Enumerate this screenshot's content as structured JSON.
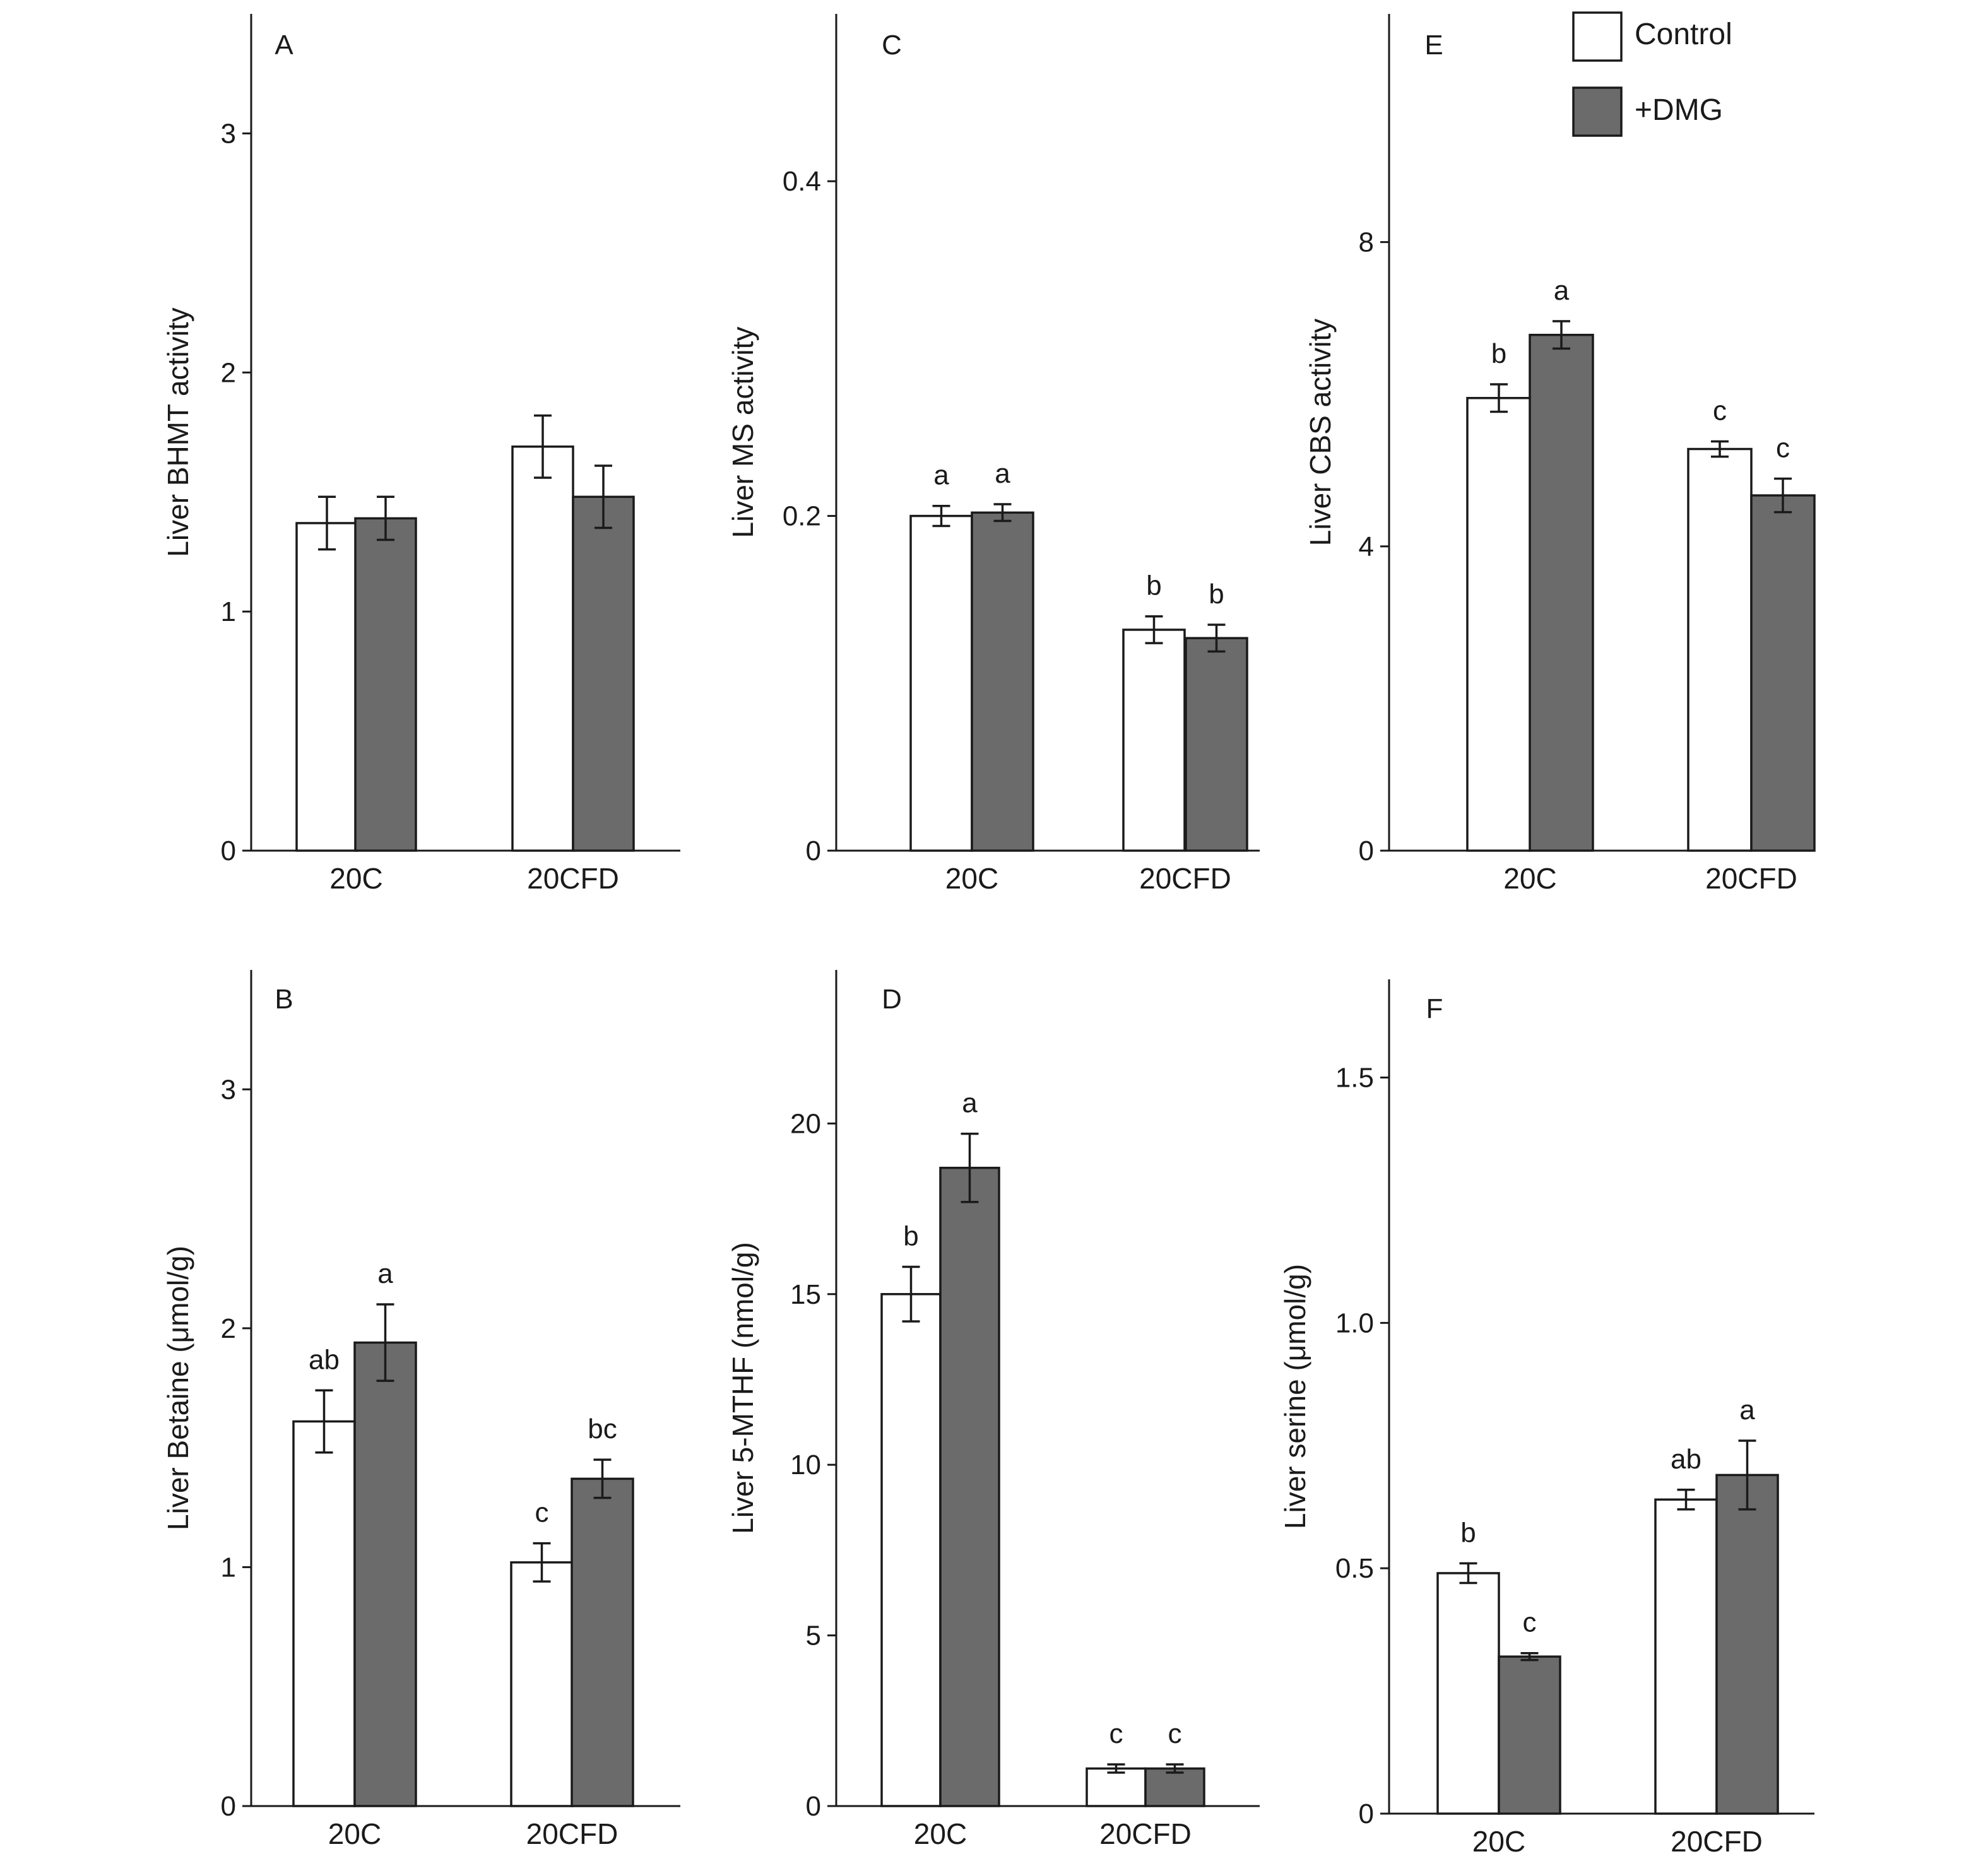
{
  "colors": {
    "control": "#ffffff",
    "dmg": "#6b6b6b",
    "axis": "#1a1a1a"
  },
  "legend": [
    {
      "label": "Control",
      "color": "#ffffff"
    },
    {
      "label": "+DMG",
      "color": "#6b6b6b"
    }
  ],
  "chart_data": [
    {
      "panel": "A",
      "type": "bar",
      "ylabel": "Liver BHMT activity",
      "categories": [
        "20C",
        "20CFD"
      ],
      "ylim": [
        0,
        3.5
      ],
      "yticks": [
        0,
        1,
        2,
        3
      ],
      "series": [
        {
          "name": "Control",
          "values": [
            1.37,
            1.69
          ],
          "errors": [
            0.11,
            0.13
          ],
          "sig": [
            "",
            ""
          ]
        },
        {
          "name": "+DMG",
          "values": [
            1.39,
            1.48
          ],
          "errors": [
            0.09,
            0.13
          ],
          "sig": [
            "",
            ""
          ]
        }
      ]
    },
    {
      "panel": "C",
      "type": "bar",
      "ylabel": "Liver MS activity",
      "categories": [
        "20C",
        "20CFD"
      ],
      "ylim": [
        0,
        0.5
      ],
      "yticks": [
        0,
        0.2,
        0.4
      ],
      "series": [
        {
          "name": "Control",
          "values": [
            0.2,
            0.132
          ],
          "errors": [
            0.006,
            0.008
          ],
          "sig": [
            "a",
            "b"
          ]
        },
        {
          "name": "+DMG",
          "values": [
            0.202,
            0.127
          ],
          "errors": [
            0.005,
            0.008
          ],
          "sig": [
            "a",
            "b"
          ]
        }
      ]
    },
    {
      "panel": "E",
      "type": "bar",
      "ylabel": "Liver CBS activity",
      "categories": [
        "20C",
        "20CFD"
      ],
      "ylim": [
        0,
        11
      ],
      "yticks": [
        0,
        4,
        8
      ],
      "series": [
        {
          "name": "Control",
          "values": [
            5.95,
            5.28
          ],
          "errors": [
            0.18,
            0.1
          ],
          "sig": [
            "b",
            "c"
          ]
        },
        {
          "name": "+DMG",
          "values": [
            6.78,
            4.67
          ],
          "errors": [
            0.18,
            0.22
          ],
          "sig": [
            "a",
            "c"
          ]
        }
      ]
    },
    {
      "panel": "B",
      "type": "bar",
      "ylabel": "Liver Betaine (μmol/g)",
      "categories": [
        "20C",
        "20CFD"
      ],
      "ylim": [
        0,
        3.5
      ],
      "yticks": [
        0,
        1,
        2,
        3
      ],
      "series": [
        {
          "name": "Control",
          "values": [
            1.61,
            1.02
          ],
          "errors": [
            0.13,
            0.08
          ],
          "sig": [
            "ab",
            "c"
          ]
        },
        {
          "name": "+DMG",
          "values": [
            1.94,
            1.37
          ],
          "errors": [
            0.16,
            0.08
          ],
          "sig": [
            "a",
            "bc"
          ]
        }
      ]
    },
    {
      "panel": "D",
      "type": "bar",
      "ylabel": "Liver 5-MTHF (nmol/g)",
      "categories": [
        "20C",
        "20CFD"
      ],
      "ylim": [
        0,
        24.5
      ],
      "yticks": [
        0,
        5,
        10,
        15,
        20
      ],
      "series": [
        {
          "name": "Control",
          "values": [
            15.0,
            1.1
          ],
          "errors": [
            0.8,
            0.12
          ],
          "sig": [
            "b",
            "c"
          ]
        },
        {
          "name": "+DMG",
          "values": [
            18.7,
            1.1
          ],
          "errors": [
            1.0,
            0.12
          ],
          "sig": [
            "a",
            "c"
          ]
        }
      ]
    },
    {
      "panel": "F",
      "type": "bar",
      "ylabel": "Liver serine (μmol/g)",
      "categories": [
        "20C",
        "20CFD"
      ],
      "ylim": [
        0,
        1.7
      ],
      "yticks": [
        0,
        0.5,
        1.0,
        1.5
      ],
      "series": [
        {
          "name": "Control",
          "values": [
            0.49,
            0.64
          ],
          "errors": [
            0.02,
            0.02
          ],
          "sig": [
            "b",
            "ab"
          ]
        },
        {
          "name": "+DMG",
          "values": [
            0.32,
            0.69
          ],
          "errors": [
            0.007,
            0.07
          ],
          "sig": [
            "c",
            "a"
          ]
        }
      ]
    }
  ]
}
